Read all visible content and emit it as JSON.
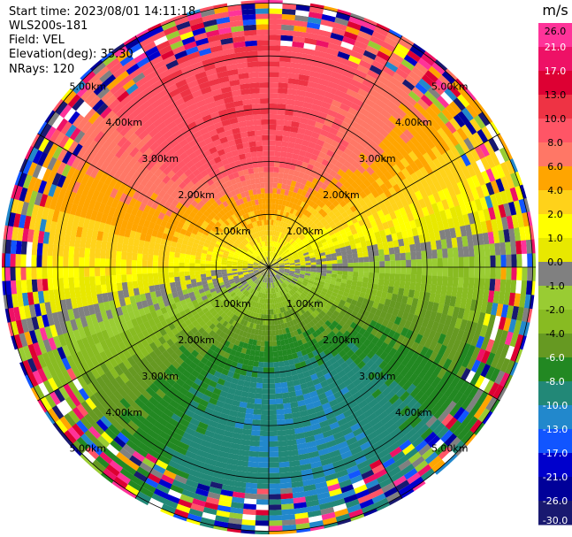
{
  "header": {
    "start_time": "Start time: 2023/08/01 14:11:18",
    "site": "WLS200s-181",
    "field": "Field: VEL",
    "elevation": "Elevation(deg): 35.30",
    "nrays": "NRays: 120"
  },
  "chart_data": {
    "type": "heatmap",
    "projection": "polar-ppi",
    "unit_label": "m/s",
    "range_rings": [
      "1.00km",
      "2.00km",
      "3.00km",
      "4.00km",
      "5.00km"
    ],
    "ring_radii_km": [
      1,
      2,
      3,
      4,
      5
    ],
    "spokes": 12,
    "max_range_km": 5,
    "grid": true,
    "colorbar_ticks": [
      "26.0",
      "21.0",
      "17.0",
      "13.0",
      "10.0",
      "8.0",
      "6.0",
      "4.0",
      "2.0",
      "1.0",
      "0.0",
      "-1.0",
      "-2.0",
      "-4.0",
      "-6.0",
      "-8.0",
      "-10.0",
      "-13.0",
      "-17.0",
      "-21.0",
      "-26.0",
      "-30.0"
    ],
    "colorbar_colors": [
      "#ff3399",
      "#ee1166",
      "#dd0033",
      "#ee3344",
      "#ff5566",
      "#ff7766",
      "#ffa500",
      "#ffd21a",
      "#ffff00",
      "#e8e800",
      "#808080",
      "#99cc33",
      "#88bb22",
      "#669922",
      "#228822",
      "#228877",
      "#2288cc",
      "#1155ff",
      "#0000cc",
      "#000099",
      "#191970"
    ],
    "colorbar_placement": "right"
  }
}
